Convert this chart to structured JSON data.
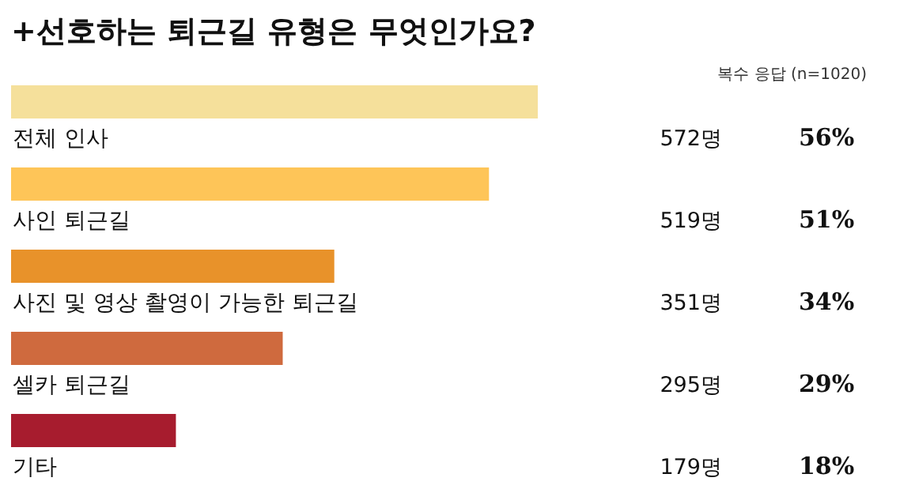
{
  "chart_data": {
    "type": "bar",
    "orientation": "horizontal",
    "title": "+선호하는 퇴근길 유형은 무엇인가요?",
    "subtitle": "복수 응답 (n=1020)",
    "categories": [
      "전체 인사",
      "사인 퇴근길",
      "사진 및 영상 촬영이 가능한 퇴근길",
      "셀카 퇴근길",
      "기타"
    ],
    "values": [
      572,
      519,
      351,
      295,
      179
    ],
    "colors": [
      "#f5e09b",
      "#fec558",
      "#e8922a",
      "#cf6a3e",
      "#a71c2e"
    ],
    "value_labels": [
      "572명",
      "519명",
      "351명",
      "295명",
      "179명"
    ],
    "annotations": [
      "56%",
      "51%",
      "34%",
      "29%",
      "18%"
    ],
    "relative": false
  }
}
